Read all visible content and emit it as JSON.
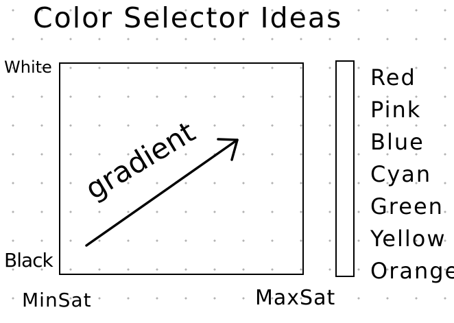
{
  "title": "Color Selector Ideas",
  "axes": {
    "top_left": "White",
    "bottom_left": "Black",
    "bottom_min": "MinSat",
    "bottom_max": "MaxSat"
  },
  "gradient_annotation": "gradient",
  "color_options": [
    "Red",
    "Pink",
    "Blue",
    "Cyan",
    "Green",
    "Yellow",
    "Orange"
  ],
  "colors": {
    "ink": "#000000",
    "background": "#ffffff",
    "grid_dots": "#b3b3b3"
  }
}
